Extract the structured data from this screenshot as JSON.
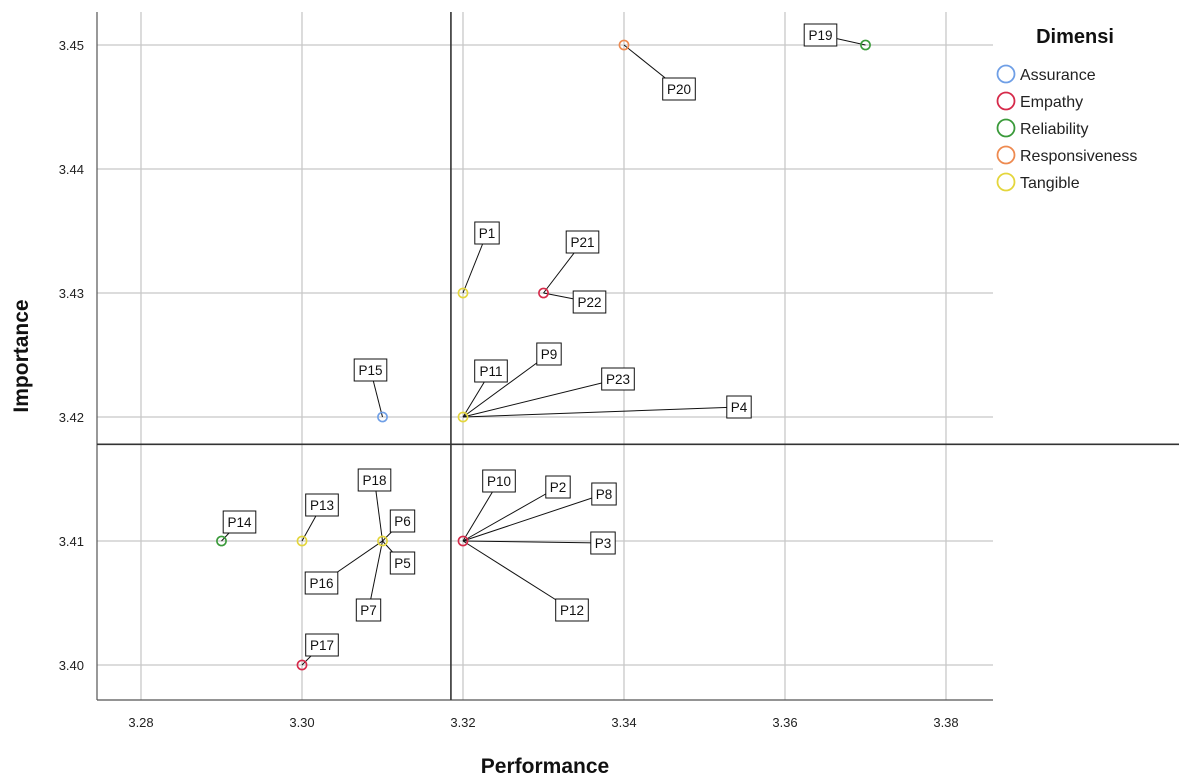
{
  "chart_data": {
    "type": "scatter",
    "xlabel": "Performance",
    "ylabel": "Importance",
    "xlim": [
      3.275,
      3.386
    ],
    "ylim": [
      3.3975,
      3.4535
    ],
    "xticks": [
      "3.28",
      "3.30",
      "3.32",
      "3.34",
      "3.36",
      "3.38"
    ],
    "xtick_values": [
      3.28,
      3.3,
      3.32,
      3.34,
      3.36,
      3.38
    ],
    "yticks": [
      "3.40",
      "3.41",
      "3.42",
      "3.43",
      "3.44",
      "3.45"
    ],
    "ytick_values": [
      3.4,
      3.41,
      3.42,
      3.43,
      3.44,
      3.45
    ],
    "grid": true,
    "reference_lines": {
      "x": 3.3185,
      "y": 3.4178
    },
    "legend": {
      "title": "Dimensi",
      "placement": "right",
      "entries": [
        {
          "name": "Assurance",
          "color": "#6f9fe6"
        },
        {
          "name": "Empathy",
          "color": "#d62a4a"
        },
        {
          "name": "Reliability",
          "color": "#3a9a3a"
        },
        {
          "name": "Responsiveness",
          "color": "#ee8a50"
        },
        {
          "name": "Tangible",
          "color": "#e4d63c"
        }
      ]
    },
    "points": [
      {
        "label": "P1",
        "x": 3.32,
        "y": 3.43,
        "dimensi": "Tangible"
      },
      {
        "label": "P2",
        "x": 3.32,
        "y": 3.41,
        "dimensi": "Empathy"
      },
      {
        "label": "P3",
        "x": 3.32,
        "y": 3.41,
        "dimensi": "Empathy"
      },
      {
        "label": "P4",
        "x": 3.32,
        "y": 3.42,
        "dimensi": "Tangible"
      },
      {
        "label": "P5",
        "x": 3.31,
        "y": 3.41,
        "dimensi": "Tangible"
      },
      {
        "label": "P6",
        "x": 3.31,
        "y": 3.41,
        "dimensi": "Tangible"
      },
      {
        "label": "P7",
        "x": 3.31,
        "y": 3.41,
        "dimensi": "Tangible"
      },
      {
        "label": "P8",
        "x": 3.32,
        "y": 3.41,
        "dimensi": "Empathy"
      },
      {
        "label": "P9",
        "x": 3.32,
        "y": 3.42,
        "dimensi": "Tangible"
      },
      {
        "label": "P10",
        "x": 3.32,
        "y": 3.41,
        "dimensi": "Empathy"
      },
      {
        "label": "P11",
        "x": 3.32,
        "y": 3.42,
        "dimensi": "Tangible"
      },
      {
        "label": "P12",
        "x": 3.32,
        "y": 3.41,
        "dimensi": "Empathy"
      },
      {
        "label": "P13",
        "x": 3.3,
        "y": 3.41,
        "dimensi": "Tangible"
      },
      {
        "label": "P14",
        "x": 3.29,
        "y": 3.41,
        "dimensi": "Reliability"
      },
      {
        "label": "P15",
        "x": 3.31,
        "y": 3.42,
        "dimensi": "Assurance"
      },
      {
        "label": "P16",
        "x": 3.31,
        "y": 3.41,
        "dimensi": "Tangible"
      },
      {
        "label": "P17",
        "x": 3.3,
        "y": 3.4,
        "dimensi": "Empathy"
      },
      {
        "label": "P18",
        "x": 3.31,
        "y": 3.41,
        "dimensi": "Tangible"
      },
      {
        "label": "P19",
        "x": 3.37,
        "y": 3.45,
        "dimensi": "Reliability"
      },
      {
        "label": "P20",
        "x": 3.34,
        "y": 3.45,
        "dimensi": "Responsiveness"
      },
      {
        "label": "P21",
        "x": 3.33,
        "y": 3.43,
        "dimensi": "Empathy"
      },
      {
        "label": "P22",
        "x": 3.33,
        "y": 3.43,
        "dimensi": "Empathy"
      },
      {
        "label": "P23",
        "x": 3.32,
        "y": 3.42,
        "dimensi": "Tangible"
      }
    ]
  }
}
